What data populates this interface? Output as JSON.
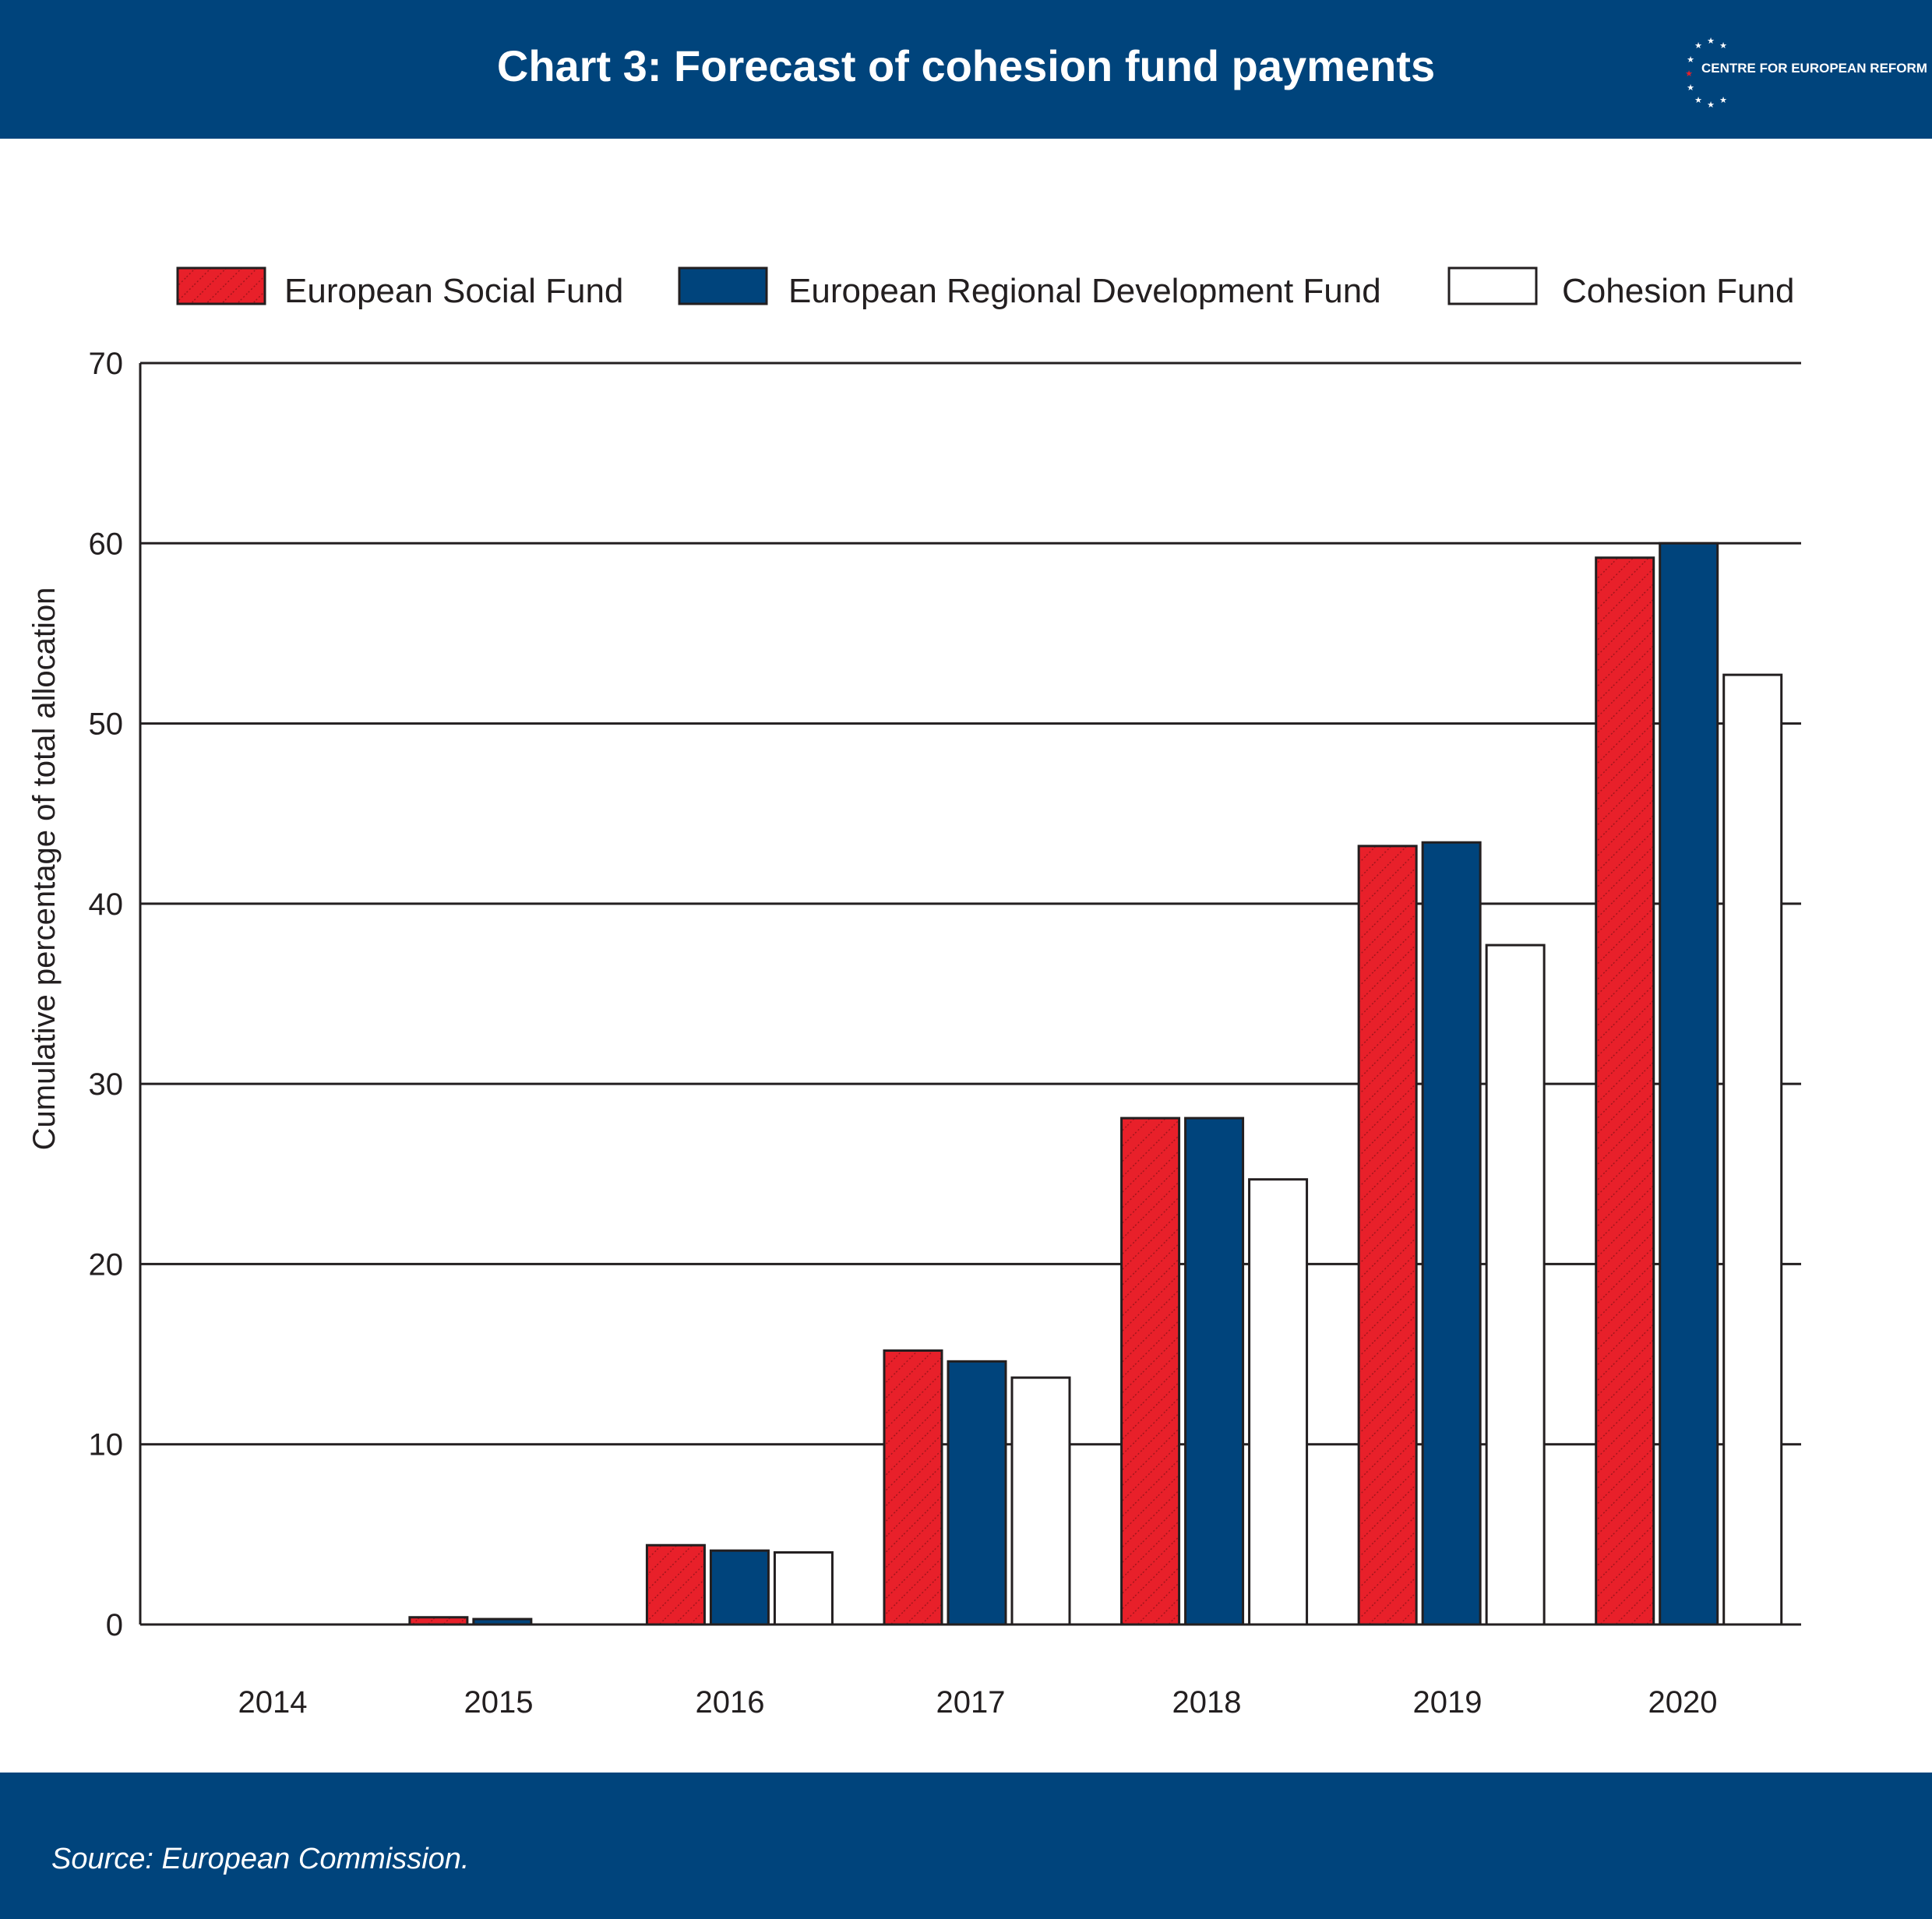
{
  "header": {
    "title": "Chart 3: Forecast of cohesion fund payments",
    "logo_text": "CENTRE FOR EUROPEAN REFORM",
    "background_color": "#00447c"
  },
  "footer": {
    "source": "Source: European Commission."
  },
  "chart_data": {
    "type": "bar",
    "title": "Chart 3: Forecast of cohesion fund payments",
    "xlabel": "",
    "ylabel": "Cumulative percentage of total allocation",
    "ylim": [
      0,
      70
    ],
    "yticks": [
      0,
      10,
      20,
      30,
      40,
      50,
      60,
      70
    ],
    "grid": true,
    "legend_position": "top",
    "categories": [
      "2014",
      "2015",
      "2016",
      "2017",
      "2018",
      "2019",
      "2020"
    ],
    "series": [
      {
        "name": "European Social Fund",
        "color": "#e8202a",
        "pattern": "hatched",
        "values": [
          0,
          0.4,
          4.4,
          15.2,
          28.1,
          43.2,
          59.2
        ]
      },
      {
        "name": "European Regional Development Fund",
        "color": "#00447c",
        "pattern": "solid",
        "values": [
          0,
          0.3,
          4.1,
          14.6,
          28.1,
          43.4,
          60.0
        ]
      },
      {
        "name": "Cohesion Fund",
        "color": "#ffffff",
        "pattern": "solid",
        "values": [
          0,
          0,
          4.0,
          13.7,
          24.7,
          37.7,
          52.7
        ]
      }
    ]
  }
}
